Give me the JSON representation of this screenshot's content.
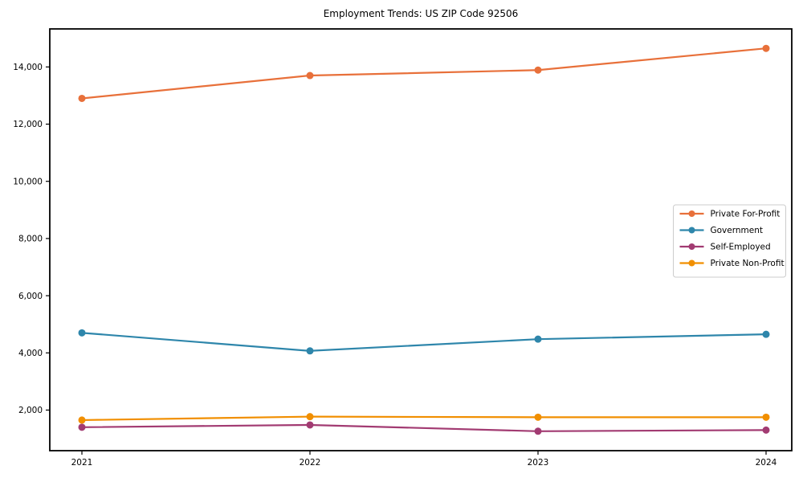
{
  "chart_data": {
    "type": "line",
    "title": "Employment Trends: US ZIP Code 92506",
    "xlabel": "",
    "ylabel": "",
    "categories": [
      "2021",
      "2022",
      "2023",
      "2024"
    ],
    "series": [
      {
        "name": "Private For-Profit",
        "color": "#E8703A",
        "values": [
          12900,
          13700,
          13890,
          14650
        ]
      },
      {
        "name": "Government",
        "color": "#2E86AB",
        "values": [
          4700,
          4070,
          4480,
          4650
        ]
      },
      {
        "name": "Self-Employed",
        "color": "#A23B72",
        "values": [
          1400,
          1480,
          1260,
          1300
        ]
      },
      {
        "name": "Private Non-Profit",
        "color": "#F18F01",
        "values": [
          1650,
          1770,
          1750,
          1750
        ]
      }
    ],
    "ylim": [
      580,
      15330
    ],
    "yticks": [
      2000,
      4000,
      6000,
      8000,
      10000,
      12000,
      14000
    ],
    "ytick_labels": [
      "2,000",
      "4,000",
      "6,000",
      "8,000",
      "10,000",
      "12,000",
      "14,000"
    ],
    "grid": false,
    "legend_position": "right",
    "axis_color": "#000000",
    "legend_border_color": "#cccccc",
    "legend_background": "#ffffff"
  }
}
